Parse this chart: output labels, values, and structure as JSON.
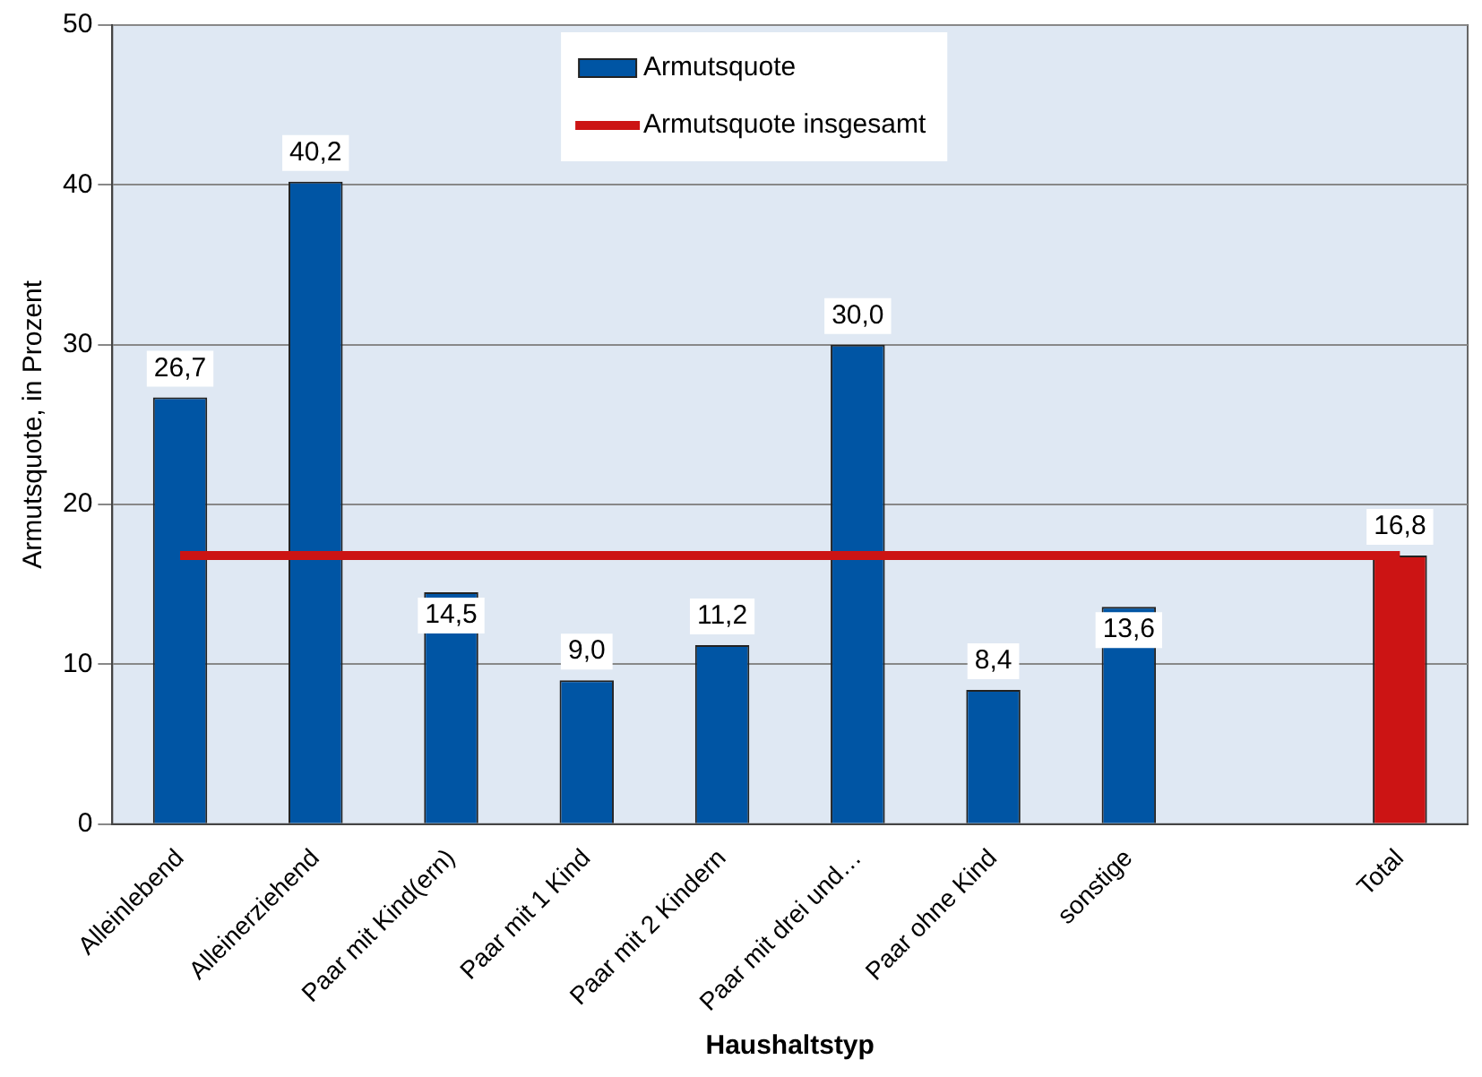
{
  "chart_data": {
    "type": "bar",
    "xlabel": "Haushaltstyp",
    "ylabel": "Armutsquote, in Prozent",
    "categories": [
      "Alleinlebend",
      "Alleinerziehend",
      "Paar mit Kind(ern)",
      "Paar mit 1 Kind",
      "Paar mit 2 Kindern",
      "Paar mit drei und…",
      "Paar ohne Kind",
      "sonstige",
      null,
      "Total"
    ],
    "series": [
      {
        "name": "Armutsquote",
        "color": "#0055a4",
        "colors": [
          "#0055a4",
          "#0055a4",
          "#0055a4",
          "#0055a4",
          "#0055a4",
          "#0055a4",
          "#0055a4",
          "#0055a4",
          "#0055a4",
          "#cc1414"
        ],
        "values": [
          26.7,
          40.2,
          14.5,
          9.0,
          11.2,
          30.0,
          8.4,
          13.6,
          null,
          16.8
        ],
        "value_labels": [
          "26,7",
          "40,2",
          "14,5",
          "9,0",
          "11,2",
          "30,0",
          "8,4",
          "13,6",
          null,
          "16,8"
        ]
      },
      {
        "name": "Armutsquote insgesamt",
        "type": "line",
        "color": "#cc1414",
        "values": [
          16.8,
          16.8,
          16.8,
          16.8,
          16.8,
          16.8,
          16.8,
          16.8,
          16.8,
          16.8
        ]
      }
    ],
    "ylim": [
      0,
      50
    ],
    "yticks": [
      0,
      10,
      20,
      30,
      40,
      50
    ],
    "grid": "y",
    "legend": "top",
    "marker": "none",
    "line_style": "solid"
  }
}
